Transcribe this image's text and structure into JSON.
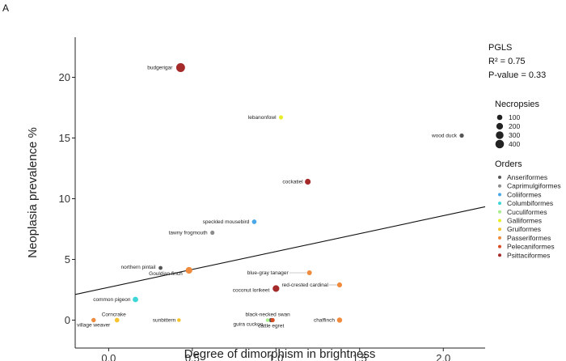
{
  "panel_letter": "A",
  "chart_data": {
    "type": "scatter",
    "title": "",
    "xlabel": "Degree of dimorphism in brightness",
    "ylabel": "Neoplasia prevalence %",
    "xlim": [
      -0.2,
      2.25
    ],
    "ylim": [
      -2.3,
      23.3
    ],
    "x_ticks": [
      0.0,
      0.5,
      1.0,
      1.5,
      2.0
    ],
    "x_tick_labels": [
      "0.0",
      "0.5",
      "1.0",
      "1.5",
      "2.0"
    ],
    "y_ticks": [
      0,
      5,
      10,
      15,
      20
    ],
    "y_tick_labels": [
      "0",
      "5",
      "10",
      "15",
      "20"
    ],
    "grid": false,
    "regression": {
      "intercept": 2.7,
      "slope": 2.95,
      "x_start": -0.2,
      "x_end": 2.25
    },
    "stats": {
      "method": "PGLS",
      "r2": "R² = 0.75",
      "pvalue": "P-value = 0.33"
    },
    "points": [
      {
        "label": "budgerigar",
        "x": 0.43,
        "y": 20.8,
        "necropsies": 430,
        "order": "Psittaciformes"
      },
      {
        "label": "lebanonfowl",
        "x": 1.03,
        "y": 16.7,
        "necropsies": 40,
        "order": "Galliformes"
      },
      {
        "label": "wood duck",
        "x": 2.11,
        "y": 15.2,
        "necropsies": 45,
        "order": "Anseriformes"
      },
      {
        "label": "cockatiel",
        "x": 1.19,
        "y": 11.4,
        "necropsies": 130,
        "order": "Psittaciformes"
      },
      {
        "label": "speckled mousebird",
        "x": 0.87,
        "y": 8.1,
        "necropsies": 60,
        "order": "Coliiformes"
      },
      {
        "label": "tawny frogmouth",
        "x": 0.62,
        "y": 7.2,
        "necropsies": 40,
        "order": "Caprimulgiformes"
      },
      {
        "label": "northern pintail",
        "x": 0.31,
        "y": 4.3,
        "necropsies": 30,
        "order": "Anseriformes"
      },
      {
        "label": "Gouldian finch",
        "x": 0.48,
        "y": 4.1,
        "necropsies": 200,
        "order": "Passeriformes"
      },
      {
        "label": "blue-gray tanager",
        "x": 1.2,
        "y": 3.9,
        "necropsies": 70,
        "order": "Passeriformes"
      },
      {
        "label": "red-crested cardinal",
        "x": 1.38,
        "y": 2.9,
        "necropsies": 80,
        "order": "Passeriformes"
      },
      {
        "label": "coconut lorikeet",
        "x": 1.0,
        "y": 2.6,
        "necropsies": 200,
        "order": "Psittaciformes"
      },
      {
        "label": "common pigeon",
        "x": 0.16,
        "y": 1.7,
        "necropsies": 110,
        "order": "Columbiformes"
      },
      {
        "label": "Corncrake",
        "x": 0.05,
        "y": 0.0,
        "necropsies": 60,
        "order": "Gruiformes"
      },
      {
        "label": "village weaver",
        "x": -0.09,
        "y": 0.0,
        "necropsies": 50,
        "order": "Passeriformes"
      },
      {
        "label": "sunbittern",
        "x": 0.42,
        "y": 0.0,
        "necropsies": 25,
        "order": "Gruiformes"
      },
      {
        "label": "black-necked swan",
        "x": 0.97,
        "y": 0.0,
        "necropsies": 40,
        "order": "Anseriformes"
      },
      {
        "label": "guira cuckoo",
        "x": 0.95,
        "y": 0.0,
        "necropsies": 25,
        "order": "Cuculiformes"
      },
      {
        "label": "cattle egret",
        "x": 0.98,
        "y": 0.0,
        "necropsies": 40,
        "order": "Pelecaniformes"
      },
      {
        "label": "chaffinch",
        "x": 1.38,
        "y": 0.0,
        "necropsies": 90,
        "order": "Passeriformes"
      }
    ],
    "size_legend": {
      "title": "Necropsies",
      "values": [
        100,
        200,
        300,
        400
      ],
      "labels": [
        "100",
        "200",
        "300",
        "400"
      ]
    },
    "order_legend": {
      "title": "Orders",
      "entries": [
        {
          "name": "Anseriformes",
          "color": "#555555"
        },
        {
          "name": "Caprimulgiformes",
          "color": "#8c8c8c"
        },
        {
          "name": "Coliiformes",
          "color": "#4aa8e8"
        },
        {
          "name": "Columbiformes",
          "color": "#3ed6d6"
        },
        {
          "name": "Cuculiformes",
          "color": "#a8ee8c"
        },
        {
          "name": "Galliformes",
          "color": "#e6ee2a"
        },
        {
          "name": "Gruiformes",
          "color": "#f5c430"
        },
        {
          "name": "Passeriformes",
          "color": "#f08a3c"
        },
        {
          "name": "Pelecaniformes",
          "color": "#d84b22"
        },
        {
          "name": "Psittaciformes",
          "color": "#a52a2a"
        }
      ]
    }
  }
}
